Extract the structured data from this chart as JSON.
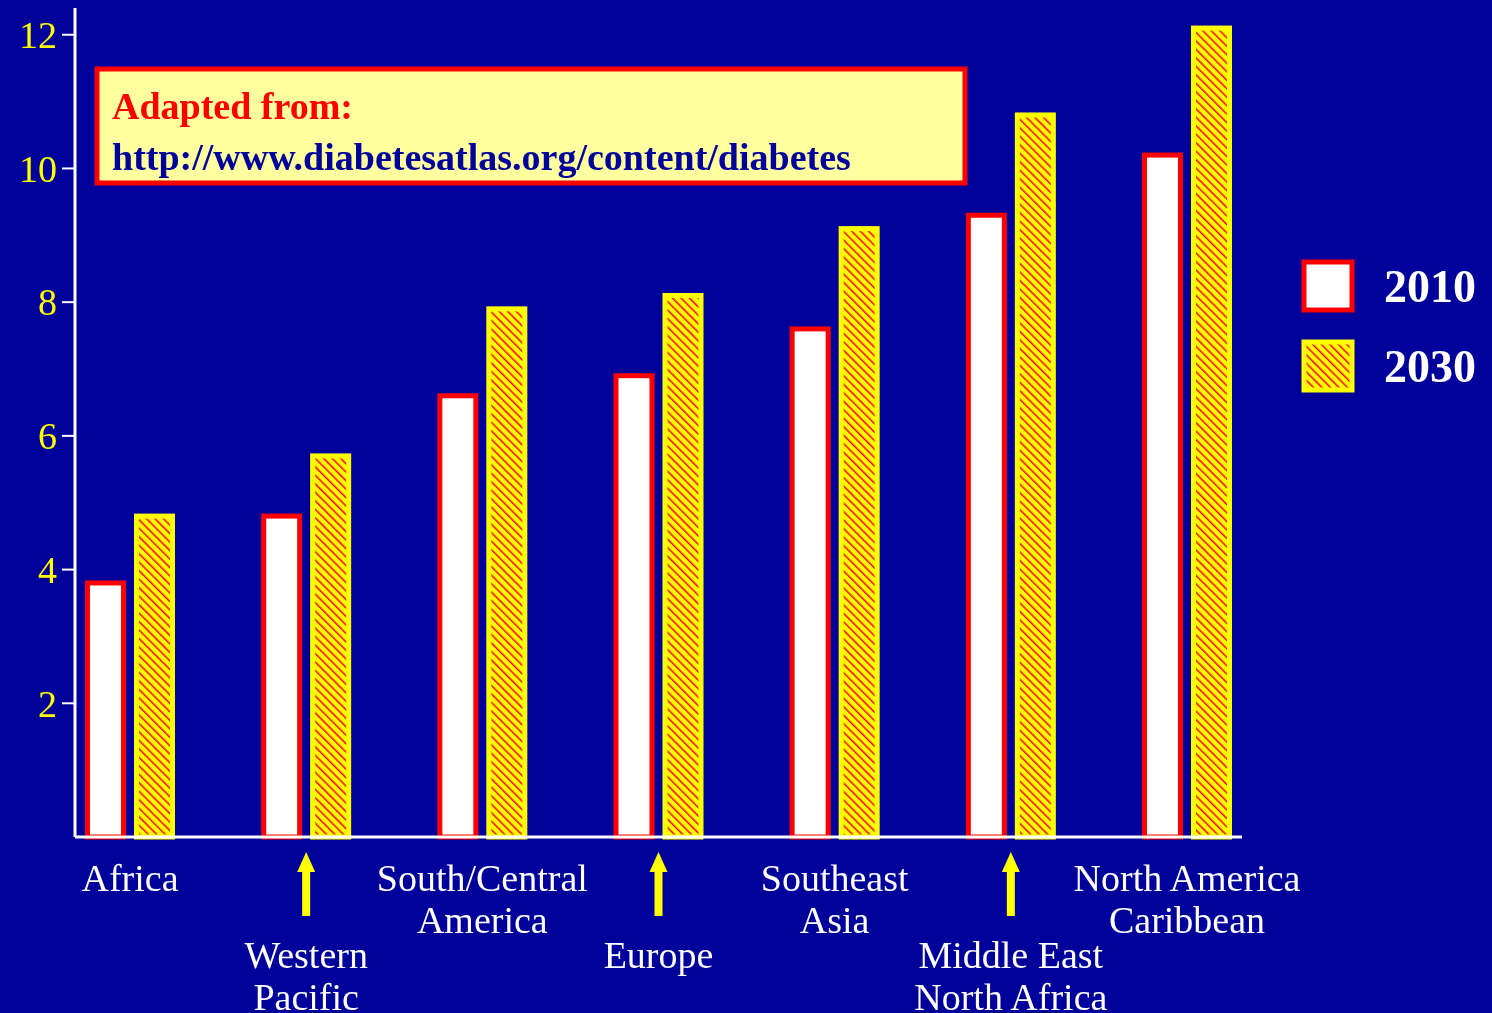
{
  "chart_data": {
    "type": "bar",
    "categories": [
      "Africa",
      "Western\nPacific",
      "South/Central\nAmerica",
      "Europe",
      "Southeast\nAsia",
      "Middle East\nNorth Africa",
      "North America\nCaribbean"
    ],
    "series": [
      {
        "name": "2010",
        "color": "#ffffff",
        "values": [
          3.8,
          4.8,
          6.6,
          6.9,
          7.6,
          9.3,
          10.2
        ]
      },
      {
        "name": "2030",
        "color": "#ffff00",
        "values": [
          4.8,
          5.7,
          7.9,
          8.1,
          9.1,
          10.8,
          12.1
        ]
      }
    ],
    "ylim": [
      0,
      12.4
    ],
    "yticks": [
      2,
      4,
      6,
      8,
      10,
      12
    ],
    "grid": false,
    "legend": "right",
    "annotations": [
      "Adapted from:",
      "http://www.diabetesatlas.org/content/diabetes"
    ]
  }
}
